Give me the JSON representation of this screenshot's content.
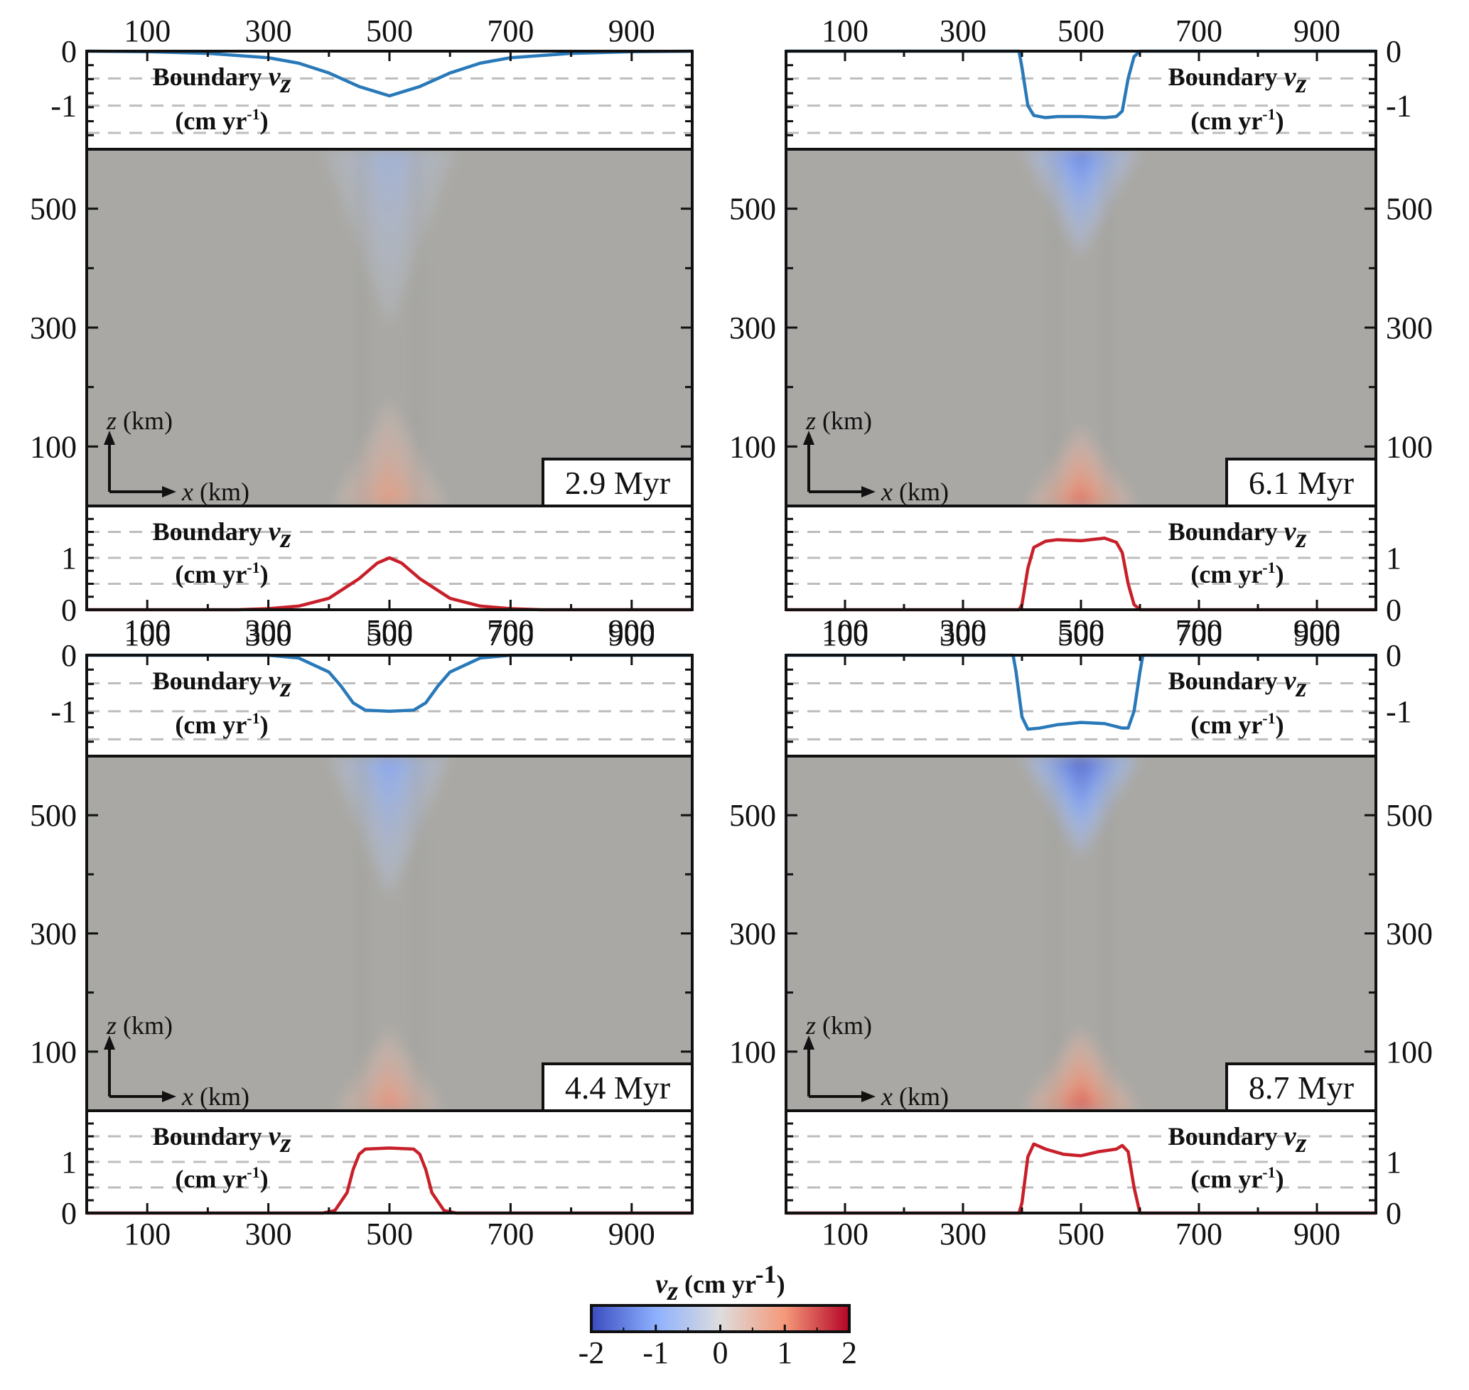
{
  "colors": {
    "background": "#a9a8a4",
    "upwelling": "#d45f3c",
    "downwelling": "#4a72c4",
    "top_curve": "#2979b9",
    "bottom_curve": "#c8202a",
    "dashes": "#bdbdbd"
  },
  "labels": {
    "boundary": "Boundary",
    "vz_var": "v",
    "vz_sub": "z",
    "units": "(cm yr",
    "units_sup": "-1",
    "units_close": ")",
    "z_axis": "z",
    "x_axis": "x",
    "km": "(km)"
  },
  "colorbar": {
    "title_var": "v",
    "title_sub": "z",
    "title_units": "(cm yr",
    "title_sup": "-1",
    "title_close": ")",
    "ticks": [
      "-2",
      "-1",
      "0",
      "1",
      "2"
    ],
    "vmin": -2,
    "vmax": 2
  },
  "chart_data": [
    {
      "type": "heatmap",
      "time_label": "2.9 Myr",
      "x_ticks": [
        "100",
        "300",
        "500",
        "700",
        "900"
      ],
      "z_ticks": [
        "100",
        "300",
        "500"
      ],
      "xlim": [
        0,
        1000
      ],
      "zlim": [
        0,
        600
      ],
      "top_boundary": {
        "ticks": [
          "0",
          "-1"
        ],
        "ylim": [
          -1.8,
          0
        ],
        "x": [
          0,
          100,
          200,
          300,
          350,
          400,
          450,
          500,
          550,
          600,
          650,
          700,
          800,
          900,
          1000
        ],
        "vz": [
          0,
          -0.01,
          -0.04,
          -0.12,
          -0.22,
          -0.4,
          -0.65,
          -0.82,
          -0.65,
          -0.4,
          -0.22,
          -0.12,
          -0.04,
          -0.01,
          0
        ]
      },
      "bottom_boundary": {
        "ticks": [
          "0",
          "1"
        ],
        "ylim": [
          0,
          2
        ],
        "x": [
          0,
          250,
          300,
          350,
          400,
          450,
          480,
          500,
          520,
          550,
          600,
          650,
          700,
          750,
          1000
        ],
        "vz": [
          0,
          0,
          0.02,
          0.07,
          0.22,
          0.6,
          0.9,
          1.0,
          0.9,
          0.6,
          0.22,
          0.07,
          0.02,
          0,
          0
        ]
      },
      "field": {
        "up_peak": 1.0,
        "up_height_km": 180,
        "up_half_width_km": 95,
        "down_peak": -0.8,
        "down_depth_km": 300,
        "down_half_width_km": 110
      }
    },
    {
      "type": "heatmap",
      "time_label": "6.1 Myr",
      "x_ticks": [
        "100",
        "300",
        "500",
        "700",
        "900"
      ],
      "z_ticks": [
        "100",
        "300",
        "500"
      ],
      "xlim": [
        0,
        1000
      ],
      "zlim": [
        0,
        600
      ],
      "top_boundary": {
        "ticks": [
          "0",
          "-1"
        ],
        "ylim": [
          -1.8,
          0
        ],
        "x": [
          0,
          395,
          400,
          410,
          420,
          440,
          460,
          500,
          540,
          560,
          570,
          580,
          590,
          600,
          1000
        ],
        "vz": [
          0,
          0,
          -0.3,
          -1.0,
          -1.18,
          -1.22,
          -1.2,
          -1.2,
          -1.22,
          -1.2,
          -1.1,
          -0.5,
          -0.1,
          0,
          0
        ]
      },
      "bottom_boundary": {
        "ticks": [
          "0",
          "1"
        ],
        "ylim": [
          0,
          2
        ],
        "x": [
          0,
          395,
          400,
          410,
          420,
          440,
          460,
          500,
          540,
          560,
          570,
          580,
          590,
          600,
          1000
        ],
        "vz": [
          0,
          0,
          0.1,
          0.8,
          1.2,
          1.32,
          1.35,
          1.33,
          1.38,
          1.3,
          1.1,
          0.5,
          0.1,
          0,
          0
        ]
      },
      "field": {
        "up_peak": 1.3,
        "up_height_km": 135,
        "up_half_width_km": 95,
        "down_peak": -1.4,
        "down_depth_km": 180,
        "down_half_width_km": 100
      }
    },
    {
      "type": "heatmap",
      "time_label": "4.4 Myr",
      "x_ticks": [
        "100",
        "300",
        "500",
        "700",
        "900"
      ],
      "z_ticks": [
        "100",
        "300",
        "500"
      ],
      "xlim": [
        0,
        1000
      ],
      "zlim": [
        0,
        600
      ],
      "top_boundary": {
        "ticks": [
          "0",
          "-1"
        ],
        "ylim": [
          -1.8,
          0
        ],
        "x": [
          0,
          300,
          350,
          400,
          420,
          440,
          460,
          500,
          540,
          560,
          580,
          600,
          650,
          700,
          1000
        ],
        "vz": [
          0,
          0,
          -0.05,
          -0.3,
          -0.55,
          -0.85,
          -0.98,
          -1.0,
          -0.98,
          -0.85,
          -0.55,
          -0.3,
          -0.05,
          0,
          0
        ]
      },
      "bottom_boundary": {
        "ticks": [
          "0",
          "1"
        ],
        "ylim": [
          0,
          2
        ],
        "x": [
          0,
          390,
          410,
          430,
          440,
          450,
          460,
          500,
          540,
          550,
          560,
          570,
          590,
          610,
          1000
        ],
        "vz": [
          0,
          0,
          0.05,
          0.4,
          0.85,
          1.15,
          1.25,
          1.27,
          1.25,
          1.15,
          0.85,
          0.4,
          0.05,
          0,
          0
        ]
      },
      "field": {
        "up_peak": 1.1,
        "up_height_km": 140,
        "up_half_width_km": 90,
        "down_peak": -1.1,
        "down_depth_km": 240,
        "down_half_width_km": 100
      }
    },
    {
      "type": "heatmap",
      "time_label": "8.7 Myr",
      "x_ticks": [
        "100",
        "300",
        "500",
        "700",
        "900"
      ],
      "z_ticks": [
        "100",
        "300",
        "500"
      ],
      "xlim": [
        0,
        1000
      ],
      "zlim": [
        0,
        600
      ],
      "top_boundary": {
        "ticks": [
          "0",
          "-1"
        ],
        "ylim": [
          -1.8,
          0
        ],
        "x": [
          0,
          385,
          390,
          400,
          410,
          430,
          460,
          500,
          540,
          570,
          580,
          590,
          600,
          605,
          1000
        ],
        "vz": [
          0,
          0,
          -0.3,
          -1.1,
          -1.32,
          -1.3,
          -1.24,
          -1.2,
          -1.22,
          -1.3,
          -1.3,
          -1.0,
          -0.3,
          0,
          0
        ]
      },
      "bottom_boundary": {
        "ticks": [
          "0",
          "1"
        ],
        "ylim": [
          0,
          2
        ],
        "x": [
          0,
          395,
          400,
          410,
          420,
          440,
          470,
          500,
          530,
          560,
          570,
          580,
          590,
          600,
          1000
        ],
        "vz": [
          0,
          0,
          0.2,
          1.1,
          1.35,
          1.25,
          1.15,
          1.12,
          1.2,
          1.25,
          1.32,
          1.2,
          0.5,
          0,
          0
        ]
      },
      "field": {
        "up_peak": 1.4,
        "up_height_km": 140,
        "up_half_width_km": 100,
        "down_peak": -1.7,
        "down_depth_km": 170,
        "down_half_width_km": 100
      }
    }
  ]
}
